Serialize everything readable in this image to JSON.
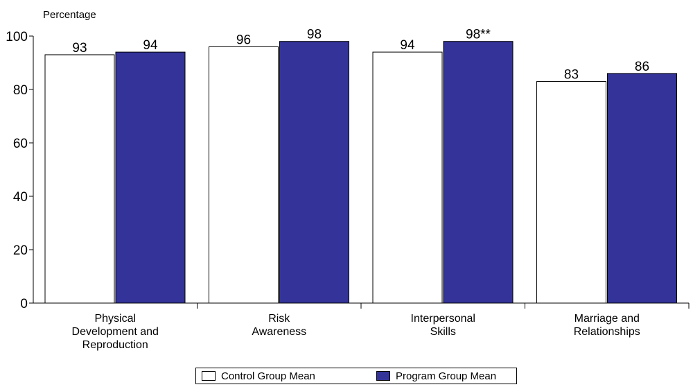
{
  "chart_data": {
    "type": "bar",
    "ylabel": "Percentage",
    "ylim": [
      0,
      100
    ],
    "yticks": [
      "0",
      "20",
      "40",
      "60",
      "80",
      "100"
    ],
    "categories": [
      [
        "Physical",
        "Development and",
        "Reproduction"
      ],
      [
        "Risk",
        "Awareness"
      ],
      [
        "Interpersonal",
        "Skills"
      ],
      [
        "Marriage and",
        "Relationships"
      ]
    ],
    "series": [
      {
        "name": "Control Group Mean",
        "color": "#ffffff",
        "values": [
          93,
          96,
          94,
          83
        ],
        "labels": [
          "93",
          "96",
          "94",
          "83"
        ]
      },
      {
        "name": "Program Group Mean",
        "color": "#333399",
        "values": [
          94,
          98,
          98,
          86
        ],
        "labels": [
          "94",
          "98",
          "98**",
          "86"
        ]
      }
    ],
    "grid": false,
    "legend_position": "bottom"
  }
}
